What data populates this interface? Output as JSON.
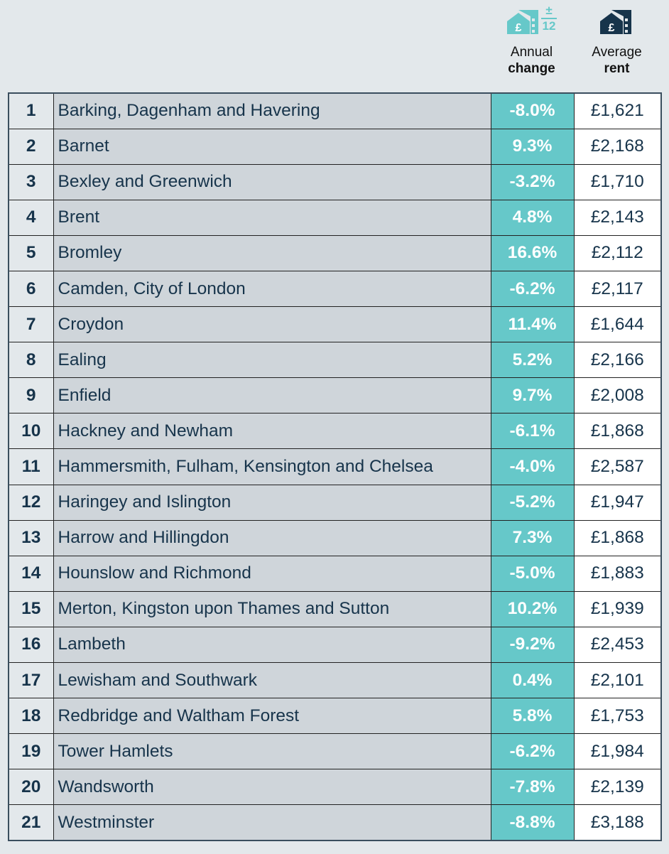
{
  "header": {
    "change_line1": "Annual",
    "change_line2": "change",
    "change_icon_plusminus": "±",
    "change_icon_months": "12",
    "rent_line1": "Average",
    "rent_line2": "rent",
    "colors": {
      "teal": "#66c8c9",
      "navy": "#17344b"
    }
  },
  "rows": [
    {
      "rank": "1",
      "area": "Barking, Dagenham and Havering",
      "change": "-8.0%",
      "rent": "£1,621"
    },
    {
      "rank": "2",
      "area": "Barnet",
      "change": "9.3%",
      "rent": "£2,168"
    },
    {
      "rank": "3",
      "area": "Bexley and Greenwich",
      "change": "-3.2%",
      "rent": "£1,710"
    },
    {
      "rank": "4",
      "area": "Brent",
      "change": "4.8%",
      "rent": "£2,143"
    },
    {
      "rank": "5",
      "area": "Bromley",
      "change": "16.6%",
      "rent": "£2,112"
    },
    {
      "rank": "6",
      "area": "Camden, City of London",
      "change": "-6.2%",
      "rent": "£2,117"
    },
    {
      "rank": "7",
      "area": "Croydon",
      "change": "11.4%",
      "rent": "£1,644"
    },
    {
      "rank": "8",
      "area": "Ealing",
      "change": "5.2%",
      "rent": "£2,166"
    },
    {
      "rank": "9",
      "area": "Enfield",
      "change": "9.7%",
      "rent": "£2,008"
    },
    {
      "rank": "10",
      "area": "Hackney and Newham",
      "change": "-6.1%",
      "rent": "£1,868"
    },
    {
      "rank": "11",
      "area": "Hammersmith, Fulham, Kensington and Chelsea",
      "change": "-4.0%",
      "rent": "£2,587"
    },
    {
      "rank": "12",
      "area": "Haringey and Islington",
      "change": "-5.2%",
      "rent": "£1,947"
    },
    {
      "rank": "13",
      "area": "Harrow and Hillingdon",
      "change": "7.3%",
      "rent": "£1,868"
    },
    {
      "rank": "14",
      "area": "Hounslow and Richmond",
      "change": "-5.0%",
      "rent": "£1,883"
    },
    {
      "rank": "15",
      "area": "Merton, Kingston upon Thames and Sutton",
      "change": "10.2%",
      "rent": "£1,939"
    },
    {
      "rank": "16",
      "area": "Lambeth",
      "change": "-9.2%",
      "rent": "£2,453"
    },
    {
      "rank": "17",
      "area": "Lewisham and Southwark",
      "change": "0.4%",
      "rent": "£2,101"
    },
    {
      "rank": "18",
      "area": "Redbridge and Waltham Forest",
      "change": "5.8%",
      "rent": "£1,753"
    },
    {
      "rank": "19",
      "area": "Tower Hamlets",
      "change": "-6.2%",
      "rent": "£1,984"
    },
    {
      "rank": "20",
      "area": "Wandsworth",
      "change": "-7.8%",
      "rent": "£2,139"
    },
    {
      "rank": "21",
      "area": "Westminster",
      "change": "-8.8%",
      "rent": "£3,188"
    }
  ]
}
